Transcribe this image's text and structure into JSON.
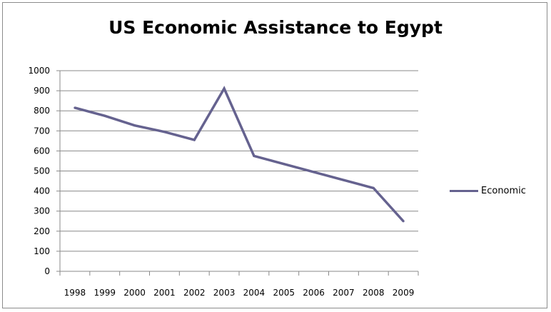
{
  "chart_data": {
    "type": "line",
    "title": "US Economic Assistance to Egypt",
    "xlabel": "",
    "ylabel": "",
    "categories": [
      "1998",
      "1999",
      "2000",
      "2001",
      "2002",
      "2003",
      "2004",
      "2005",
      "2006",
      "2007",
      "2008",
      "2009"
    ],
    "ylim": [
      0,
      1000
    ],
    "yticks": [
      0,
      100,
      200,
      300,
      400,
      500,
      600,
      700,
      800,
      900,
      1000
    ],
    "grid": true,
    "legend_position": "right",
    "series": [
      {
        "name": "Economic",
        "color": "#65628f",
        "values": [
          815,
          775,
          727,
          695,
          655,
          911,
          575,
          535,
          495,
          455,
          415,
          250
        ]
      }
    ]
  }
}
